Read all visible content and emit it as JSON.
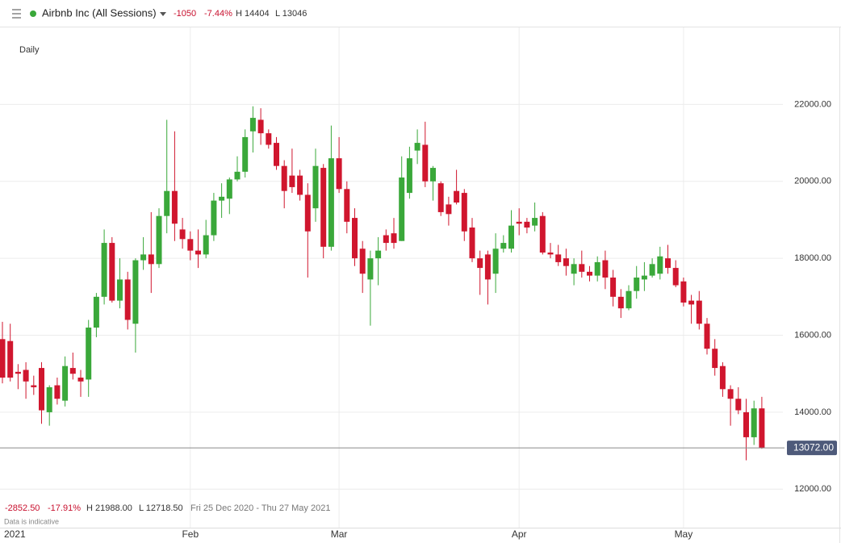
{
  "header": {
    "title": "Airbnb Inc (All Sessions)",
    "change": "-1050",
    "change_pct": "-7.44%",
    "high": "H 14404",
    "low": "L 13046"
  },
  "chart_data": {
    "type": "candlestick",
    "interval": "Daily",
    "up_color": "#3aa83a",
    "down_color": "#d0162e",
    "categories": [
      "2021",
      null,
      null,
      null,
      null,
      null,
      null,
      null,
      null,
      null,
      null,
      null,
      null,
      null,
      null,
      null,
      null,
      null,
      null,
      null,
      null,
      null,
      null,
      null,
      "Feb",
      null,
      null,
      null,
      null,
      null,
      null,
      null,
      null,
      null,
      null,
      null,
      null,
      null,
      null,
      null,
      null,
      null,
      null,
      "Mar",
      null,
      null,
      null,
      null,
      null,
      null,
      null,
      null,
      null,
      null,
      null,
      null,
      null,
      null,
      null,
      null,
      null,
      null,
      null,
      null,
      null,
      null,
      "Apr",
      null,
      null,
      null,
      null,
      null,
      null,
      null,
      null,
      null,
      null,
      null,
      null,
      null,
      null,
      null,
      null,
      null,
      null,
      null,
      null,
      "May",
      null,
      null,
      null,
      null,
      null,
      null,
      null,
      null,
      null,
      null
    ],
    "open": [
      15900,
      15850,
      15050,
      15100,
      14700,
      15150,
      14000,
      14700,
      14300,
      15150,
      14900,
      14850,
      16200,
      17000,
      18400,
      16900,
      17450,
      16300,
      17950,
      18100,
      17850,
      19100,
      19750,
      18750,
      18500,
      18200,
      18100,
      18600,
      19500,
      19550,
      20050,
      20250,
      21300,
      21600,
      21250,
      21000,
      20400,
      20150,
      20150,
      19650,
      19300,
      20350,
      18300,
      20600,
      19800,
      19050,
      18250,
      17450,
      18000,
      18600,
      18650,
      18450,
      19700,
      20800,
      20950,
      20000,
      19950,
      19400,
      19750,
      19700,
      18800,
      18000,
      18100,
      17600,
      18250,
      18250,
      18950,
      18950,
      18850,
      19100,
      18150,
      18100,
      18000,
      17600,
      17850,
      17650,
      17550,
      17950,
      17500,
      17000,
      16700,
      17150,
      17450,
      17550,
      17600,
      18000,
      17750,
      17400,
      16900,
      16900,
      16300,
      15650,
      15200,
      14600,
      14350,
      14000,
      13350,
      14100
    ],
    "high": [
      16350,
      16300,
      15250,
      15300,
      14950,
      15300,
      14700,
      14900,
      15450,
      15550,
      15100,
      16400,
      17100,
      18750,
      18550,
      18000,
      17650,
      18000,
      18550,
      19200,
      19300,
      21600,
      21300,
      19050,
      18700,
      18750,
      19000,
      19700,
      19950,
      20100,
      20650,
      21350,
      21950,
      21900,
      21350,
      21150,
      20550,
      20850,
      20300,
      19950,
      20850,
      20450,
      21450,
      21150,
      20000,
      19300,
      18450,
      18200,
      18550,
      18750,
      19050,
      20650,
      20900,
      21350,
      21550,
      20400,
      20000,
      19600,
      20300,
      19800,
      19050,
      18200,
      18200,
      18650,
      18600,
      19250,
      19300,
      19050,
      19450,
      19200,
      18400,
      18350,
      18250,
      18000,
      18200,
      17800,
      18050,
      18200,
      17700,
      17200,
      17300,
      17800,
      17900,
      18000,
      18300,
      18350,
      17950,
      17500,
      17050,
      17150,
      16450,
      15900,
      15300,
      14700,
      14650,
      14350,
      14300,
      14400
    ],
    "low": [
      14750,
      14800,
      14600,
      14350,
      14450,
      13700,
      13650,
      14200,
      14150,
      14850,
      14400,
      14400,
      15950,
      16800,
      16850,
      16700,
      16150,
      15550,
      17700,
      17100,
      17750,
      18650,
      18450,
      18250,
      17950,
      17750,
      18000,
      18450,
      19050,
      19150,
      20000,
      20100,
      20750,
      20950,
      20850,
      20300,
      19300,
      19700,
      19500,
      17500,
      18950,
      18000,
      18200,
      19700,
      18650,
      17800,
      17100,
      16250,
      17300,
      18200,
      18250,
      18450,
      19550,
      20450,
      19850,
      19500,
      19100,
      18850,
      19400,
      18450,
      17900,
      17050,
      16800,
      17100,
      18150,
      18150,
      18600,
      18650,
      18700,
      18100,
      18000,
      17800,
      17550,
      17300,
      17500,
      17400,
      17400,
      17200,
      16750,
      16450,
      16650,
      16950,
      17150,
      17500,
      17450,
      17600,
      17250,
      16750,
      16300,
      16150,
      15500,
      14950,
      14400,
      13650,
      13950,
      12750,
      13150,
      13050
    ],
    "close": [
      14900,
      14900,
      15000,
      14800,
      14650,
      14050,
      14650,
      14350,
      15200,
      15000,
      14800,
      16200,
      17000,
      18400,
      16900,
      17450,
      16400,
      17950,
      18100,
      17850,
      19100,
      19750,
      18900,
      18500,
      18200,
      18100,
      18600,
      19500,
      19600,
      20050,
      20250,
      21150,
      21650,
      21250,
      20950,
      20400,
      19750,
      19850,
      19650,
      18700,
      20400,
      18300,
      20600,
      19800,
      18950,
      18000,
      17600,
      18000,
      18200,
      18400,
      18400,
      20100,
      20600,
      21000,
      20000,
      20350,
      19200,
      19150,
      19450,
      18700,
      18000,
      17750,
      17450,
      18250,
      18400,
      18850,
      18900,
      18800,
      19050,
      18150,
      18100,
      17900,
      17800,
      17850,
      17650,
      17550,
      17900,
      17500,
      17000,
      16700,
      17150,
      17500,
      17550,
      17850,
      18050,
      17750,
      17300,
      16850,
      16800,
      16300,
      15650,
      15150,
      14600,
      14350,
      14050,
      13350,
      14100,
      13072
    ],
    "ylim": [
      11000,
      24000
    ],
    "yticks": [
      {
        "value": 12000,
        "label": "12000.00"
      },
      {
        "value": 14000,
        "label": "14000.00"
      },
      {
        "value": 16000,
        "label": "16000.00"
      },
      {
        "value": 18000,
        "label": "18000.00"
      },
      {
        "value": 20000,
        "label": "20000.00"
      },
      {
        "value": 22000,
        "label": "22000.00"
      }
    ],
    "grid": true,
    "last_price": {
      "value": 13072,
      "label": "13072.00"
    },
    "summary": {
      "change": "-2852.50",
      "change_pct": "-17.91%",
      "high": "H 21988.00",
      "low": "L 12718.50",
      "range": "Fri 25 Dec 2020 - Thu 27 May 2021",
      "note": "Data is indicative"
    }
  }
}
